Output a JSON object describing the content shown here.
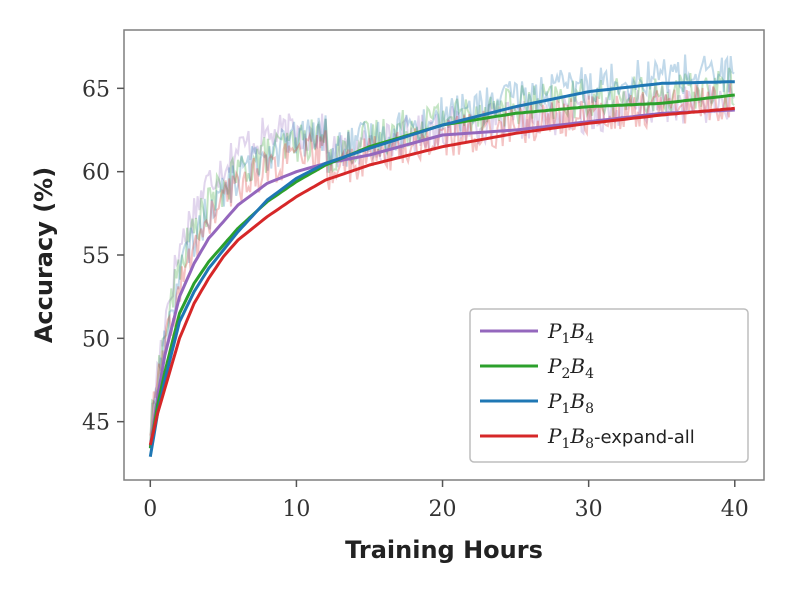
{
  "chart_data": {
    "type": "line",
    "xlabel": "Training Hours",
    "ylabel": "Accuracy (%)",
    "xlim": [
      -1.8,
      42
    ],
    "ylim": [
      41.5,
      68.5
    ],
    "xticks": [
      0,
      10,
      20,
      30,
      40
    ],
    "yticks": [
      45,
      50,
      55,
      60,
      65
    ],
    "grid": false,
    "legend_position": "lower-right",
    "series": [
      {
        "name": "P1B4",
        "label_main": "P",
        "label_sub1": "1",
        "label_mid": "B",
        "label_sub2": "4",
        "label_suffix": "",
        "color": "#9467bd",
        "smooth_x": [
          0,
          0.5,
          1,
          2,
          3,
          4,
          5,
          6,
          8,
          10,
          12,
          15,
          20,
          25,
          30,
          35,
          40
        ],
        "smooth_y": [
          43.5,
          46.5,
          49,
          52.5,
          54.5,
          56,
          57,
          58,
          59.3,
          60,
          60.5,
          61,
          62.2,
          62.5,
          63,
          63.5,
          63.7
        ]
      },
      {
        "name": "P2B4",
        "label_main": "P",
        "label_sub1": "2",
        "label_mid": "B",
        "label_sub2": "4",
        "label_suffix": "",
        "color": "#2ca02c",
        "smooth_x": [
          0,
          0.5,
          1,
          2,
          3,
          4,
          5,
          6,
          8,
          10,
          12,
          15,
          20,
          25,
          30,
          35,
          40
        ],
        "smooth_y": [
          43.4,
          46,
          48,
          51.5,
          53.3,
          54.6,
          55.6,
          56.6,
          58.2,
          59.4,
          60.4,
          61.5,
          62.8,
          63.5,
          63.9,
          64.1,
          64.6
        ]
      },
      {
        "name": "P1B8",
        "label_main": "P",
        "label_sub1": "1",
        "label_mid": "B",
        "label_sub2": "8",
        "label_suffix": "",
        "color": "#1f77b4",
        "smooth_x": [
          0,
          0.5,
          1,
          2,
          3,
          4,
          5,
          6,
          8,
          10,
          12,
          15,
          20,
          25,
          30,
          35,
          40
        ],
        "smooth_y": [
          42.9,
          45.5,
          47.5,
          51,
          52.8,
          54.2,
          55.3,
          56.4,
          58.3,
          59.6,
          60.5,
          61.4,
          62.8,
          63.9,
          64.8,
          65.3,
          65.4
        ]
      },
      {
        "name": "P1B8-expand-all",
        "label_main": "P",
        "label_sub1": "1",
        "label_mid": "B",
        "label_sub2": "8",
        "label_suffix": "-expand-all",
        "color": "#d62728",
        "smooth_x": [
          0,
          0.5,
          1,
          2,
          3,
          4,
          5,
          6,
          8,
          10,
          12,
          15,
          20,
          25,
          30,
          35,
          40
        ],
        "smooth_y": [
          43.6,
          45.5,
          47,
          50,
          52.1,
          53.6,
          54.9,
          55.9,
          57.3,
          58.5,
          59.5,
          60.4,
          61.5,
          62.3,
          62.9,
          63.4,
          63.8
        ]
      }
    ]
  }
}
